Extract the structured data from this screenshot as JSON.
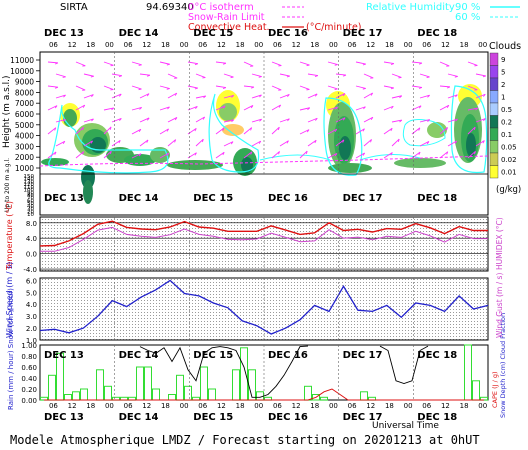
{
  "header": {
    "station": "SIRTA",
    "coords": "94.69340",
    "legend_iso": "0°C isotherm",
    "legend_snow": "Snow-Rain Limit",
    "legend_conv": "Convective Heat.",
    "legend_conv_unit": "(°C/minute)",
    "legend_rh": "Relative Humidity",
    "rh_90": "90 %",
    "rh_60": "60 %"
  },
  "footer": {
    "utc_label": "Universal Time",
    "caption": "Modele Atmospherique LMDZ / Forecast starting on 20201213 at 0hUT"
  },
  "colors": {
    "red": "#dd1111",
    "magenta": "#ff33ff",
    "cyan": "#33ffff",
    "blue": "#2222cc",
    "green": "#33dd33",
    "violet": "#cc44cc"
  },
  "chart_data": [
    {
      "type": "heatmap",
      "panel": "cloud-height",
      "days": [
        "DEC 13",
        "DEC 14",
        "DEC 15",
        "DEC 16",
        "DEC 17",
        "DEC 18"
      ],
      "hours": [
        "06",
        "12",
        "18",
        "00"
      ],
      "ylabel": "Height  (m a.s.l.)",
      "yticks": [
        1000,
        2000,
        3000,
        4000,
        5000,
        6000,
        7000,
        8000,
        9000,
        10000,
        11000
      ],
      "ylabel_low": "Up to 200 m a.g.l.",
      "yticks_low": [
        10,
        20,
        30,
        40,
        50,
        60,
        70,
        80,
        90,
        100,
        110,
        120,
        130,
        140,
        150
      ],
      "clouds_label": "Clouds",
      "clouds_unit": "(g/kg)",
      "clouds_scale": [
        9,
        5,
        2,
        1,
        0.5,
        0.2,
        0.1,
        0.05,
        0.02,
        0.01
      ]
    },
    {
      "type": "line",
      "panel": "temperature",
      "ylabel": "Temperature (°C)",
      "ylabel_right": "HUMIDEX (°C)",
      "yticks": [
        -4,
        0,
        4,
        8
      ],
      "ylim": [
        -4.5,
        9.5
      ],
      "series": [
        {
          "values": [
            2.0,
            2.1,
            3.3,
            5.2,
            7.6,
            8.4,
            6.8,
            6.4,
            6.2,
            6.9,
            8.3,
            6.9,
            6.6,
            5.8,
            5.8,
            5.8,
            7.2,
            6.1,
            5.0,
            5.4,
            8.0,
            6.0,
            6.3,
            5.6,
            6.5,
            6.3,
            7.8,
            6.7,
            5.2,
            7.0,
            6.0,
            6.0
          ]
        },
        {
          "values": [
            0.6,
            0.6,
            1.6,
            3.7,
            6.1,
            6.8,
            5.0,
            4.5,
            4.2,
            4.9,
            6.4,
            5.0,
            4.5,
            3.7,
            3.6,
            3.8,
            5.3,
            4.2,
            3.1,
            3.3,
            6.2,
            4.0,
            4.3,
            3.6,
            4.5,
            4.2,
            5.8,
            4.6,
            3.0,
            5.0,
            3.9,
            3.9
          ]
        }
      ]
    },
    {
      "type": "line",
      "panel": "wind",
      "ylabel": "Wind Speed (m / s)",
      "ylabel_right": "Wind Gust (m / s)",
      "yticks": [
        1.0,
        2.0,
        3.0,
        4.0,
        5.0,
        6.0
      ],
      "ylim": [
        1.0,
        6.2
      ],
      "series": [
        {
          "values": [
            1.8,
            1.9,
            1.6,
            2.0,
            3.0,
            4.3,
            3.8,
            4.6,
            5.2,
            6.0,
            4.9,
            4.7,
            4.1,
            3.7,
            2.6,
            2.2,
            1.5,
            2.0,
            2.7,
            3.9,
            3.4,
            5.5,
            3.5,
            3.4,
            3.9,
            2.9,
            4.1,
            3.9,
            3.4,
            4.7,
            3.6,
            3.9
          ]
        }
      ]
    },
    {
      "type": "bar",
      "panel": "precip",
      "ylabel": "Rain (mm / hour) Snow (cm / hour)",
      "ylabel_right": "CAPE (J / g)",
      "ylabel_right2": "Snow Depth (cm) Cloud Fraction",
      "yticks": [
        0.0,
        0.2,
        0.4,
        0.6,
        0.8,
        1.0
      ],
      "ylim": [
        0,
        1.0
      ],
      "rain": [
        0.05,
        0.45,
        0.85,
        0.1,
        0.15,
        0.2,
        0,
        0.55,
        0.25,
        0.05,
        0.05,
        0.05,
        0.6,
        0.6,
        0.2,
        0,
        0.1,
        0.45,
        0.25,
        0.05,
        0.6,
        0.2,
        0,
        0,
        0.55,
        0.95,
        0.55,
        0.15,
        0.05,
        0,
        0,
        0,
        0,
        0.25,
        0.1,
        0.05,
        0,
        0,
        0,
        0,
        0.15,
        0.05,
        0,
        0,
        0,
        0,
        0,
        0,
        0,
        0,
        0,
        0,
        0,
        1.0,
        0.35,
        0.05
      ],
      "cape": [
        0,
        0,
        0,
        0,
        0,
        0,
        0,
        0,
        0,
        0,
        0,
        0,
        0,
        0,
        0,
        0,
        0,
        0,
        0,
        0,
        0,
        0,
        0,
        0,
        0,
        0,
        0,
        0,
        0,
        0,
        0,
        0,
        0,
        0,
        0.05,
        0.15,
        0.2,
        0.1,
        0,
        0,
        0,
        0,
        0,
        0,
        0,
        0,
        0,
        0,
        0,
        0,
        0,
        0,
        0,
        0,
        0,
        0
      ],
      "cloud_fraction": [
        null,
        null,
        null,
        null,
        null,
        null,
        null,
        null,
        null,
        null,
        null,
        null,
        0.97,
        0.9,
        0.85,
        0.95,
        0.7,
        0.95,
        0.55,
        0.35,
        0.85,
        0.95,
        0.97,
        0.95,
        0.9,
        0.6,
        0.05,
        0.05,
        0.1,
        0.25,
        0.45,
        0.7,
        0.97,
        0.98,
        null,
        null,
        null,
        null,
        null,
        null,
        null,
        null,
        0.98,
        0.9,
        0.35,
        0.3,
        0.35,
        0.9,
        0.98,
        null,
        null,
        null,
        null,
        null,
        null,
        null
      ]
    }
  ]
}
